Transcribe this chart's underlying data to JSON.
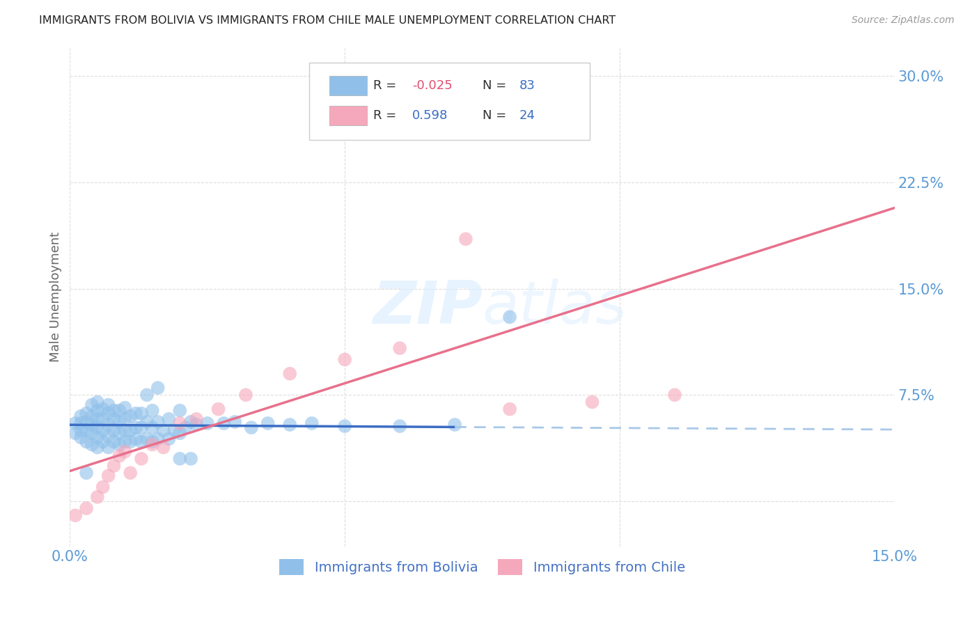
{
  "title": "IMMIGRANTS FROM BOLIVIA VS IMMIGRANTS FROM CHILE MALE UNEMPLOYMENT CORRELATION CHART",
  "source": "Source: ZipAtlas.com",
  "ylabel": "Male Unemployment",
  "xlim": [
    0.0,
    0.15
  ],
  "ylim": [
    -0.032,
    0.32
  ],
  "xticks": [
    0.0,
    0.05,
    0.1,
    0.15
  ],
  "xtick_labels": [
    "0.0%",
    "",
    "",
    "15.0%"
  ],
  "yticks": [
    0.0,
    0.075,
    0.15,
    0.225,
    0.3
  ],
  "ytick_labels": [
    "",
    "7.5%",
    "15.0%",
    "22.5%",
    "30.0%"
  ],
  "bolivia_color": "#90C0EA",
  "chile_color": "#F5A8BC",
  "bolivia_line_color": "#3B6DC4",
  "bolivia_line_dash_color": "#A8C8E8",
  "chile_line_color": "#E8708C",
  "bolivia_R": -0.025,
  "bolivia_N": 83,
  "chile_R": 0.598,
  "chile_N": 24,
  "background_color": "#FFFFFF",
  "grid_color": "#DDDDDD",
  "tick_color": "#5B9BD5",
  "legend_r_color": "#E05070",
  "legend_n_color": "#3B6DC4",
  "bolivia_x": [
    0.001,
    0.001,
    0.002,
    0.002,
    0.002,
    0.002,
    0.003,
    0.003,
    0.003,
    0.003,
    0.004,
    0.004,
    0.004,
    0.004,
    0.004,
    0.005,
    0.005,
    0.005,
    0.005,
    0.005,
    0.005,
    0.006,
    0.006,
    0.006,
    0.006,
    0.007,
    0.007,
    0.007,
    0.007,
    0.007,
    0.008,
    0.008,
    0.008,
    0.008,
    0.009,
    0.009,
    0.009,
    0.009,
    0.01,
    0.01,
    0.01,
    0.01,
    0.011,
    0.011,
    0.011,
    0.012,
    0.012,
    0.012,
    0.013,
    0.013,
    0.013,
    0.014,
    0.014,
    0.015,
    0.015,
    0.015,
    0.016,
    0.016,
    0.017,
    0.018,
    0.018,
    0.019,
    0.02,
    0.02,
    0.021,
    0.022,
    0.023,
    0.025,
    0.028,
    0.03,
    0.033,
    0.036,
    0.04,
    0.044,
    0.05,
    0.06,
    0.07,
    0.08,
    0.003,
    0.014,
    0.016,
    0.02,
    0.022
  ],
  "bolivia_y": [
    0.048,
    0.055,
    0.045,
    0.05,
    0.055,
    0.06,
    0.042,
    0.05,
    0.056,
    0.062,
    0.04,
    0.048,
    0.054,
    0.06,
    0.068,
    0.038,
    0.045,
    0.052,
    0.058,
    0.064,
    0.07,
    0.042,
    0.05,
    0.058,
    0.065,
    0.038,
    0.046,
    0.054,
    0.062,
    0.068,
    0.042,
    0.05,
    0.058,
    0.064,
    0.04,
    0.048,
    0.056,
    0.064,
    0.042,
    0.05,
    0.058,
    0.066,
    0.042,
    0.05,
    0.06,
    0.044,
    0.052,
    0.062,
    0.042,
    0.052,
    0.062,
    0.044,
    0.056,
    0.042,
    0.052,
    0.064,
    0.044,
    0.056,
    0.05,
    0.044,
    0.058,
    0.05,
    0.048,
    0.064,
    0.052,
    0.056,
    0.054,
    0.055,
    0.055,
    0.056,
    0.052,
    0.055,
    0.054,
    0.055,
    0.053,
    0.053,
    0.054,
    0.13,
    0.02,
    0.075,
    0.08,
    0.03,
    0.03
  ],
  "chile_x": [
    0.001,
    0.003,
    0.005,
    0.006,
    0.007,
    0.008,
    0.009,
    0.01,
    0.011,
    0.013,
    0.015,
    0.017,
    0.02,
    0.023,
    0.027,
    0.032,
    0.04,
    0.05,
    0.06,
    0.068,
    0.072,
    0.08,
    0.095,
    0.11
  ],
  "chile_y": [
    -0.01,
    -0.005,
    0.003,
    0.01,
    0.018,
    0.025,
    0.032,
    0.035,
    0.02,
    0.03,
    0.04,
    0.038,
    0.055,
    0.058,
    0.065,
    0.075,
    0.09,
    0.1,
    0.108,
    0.298,
    0.185,
    0.065,
    0.07,
    0.075
  ]
}
